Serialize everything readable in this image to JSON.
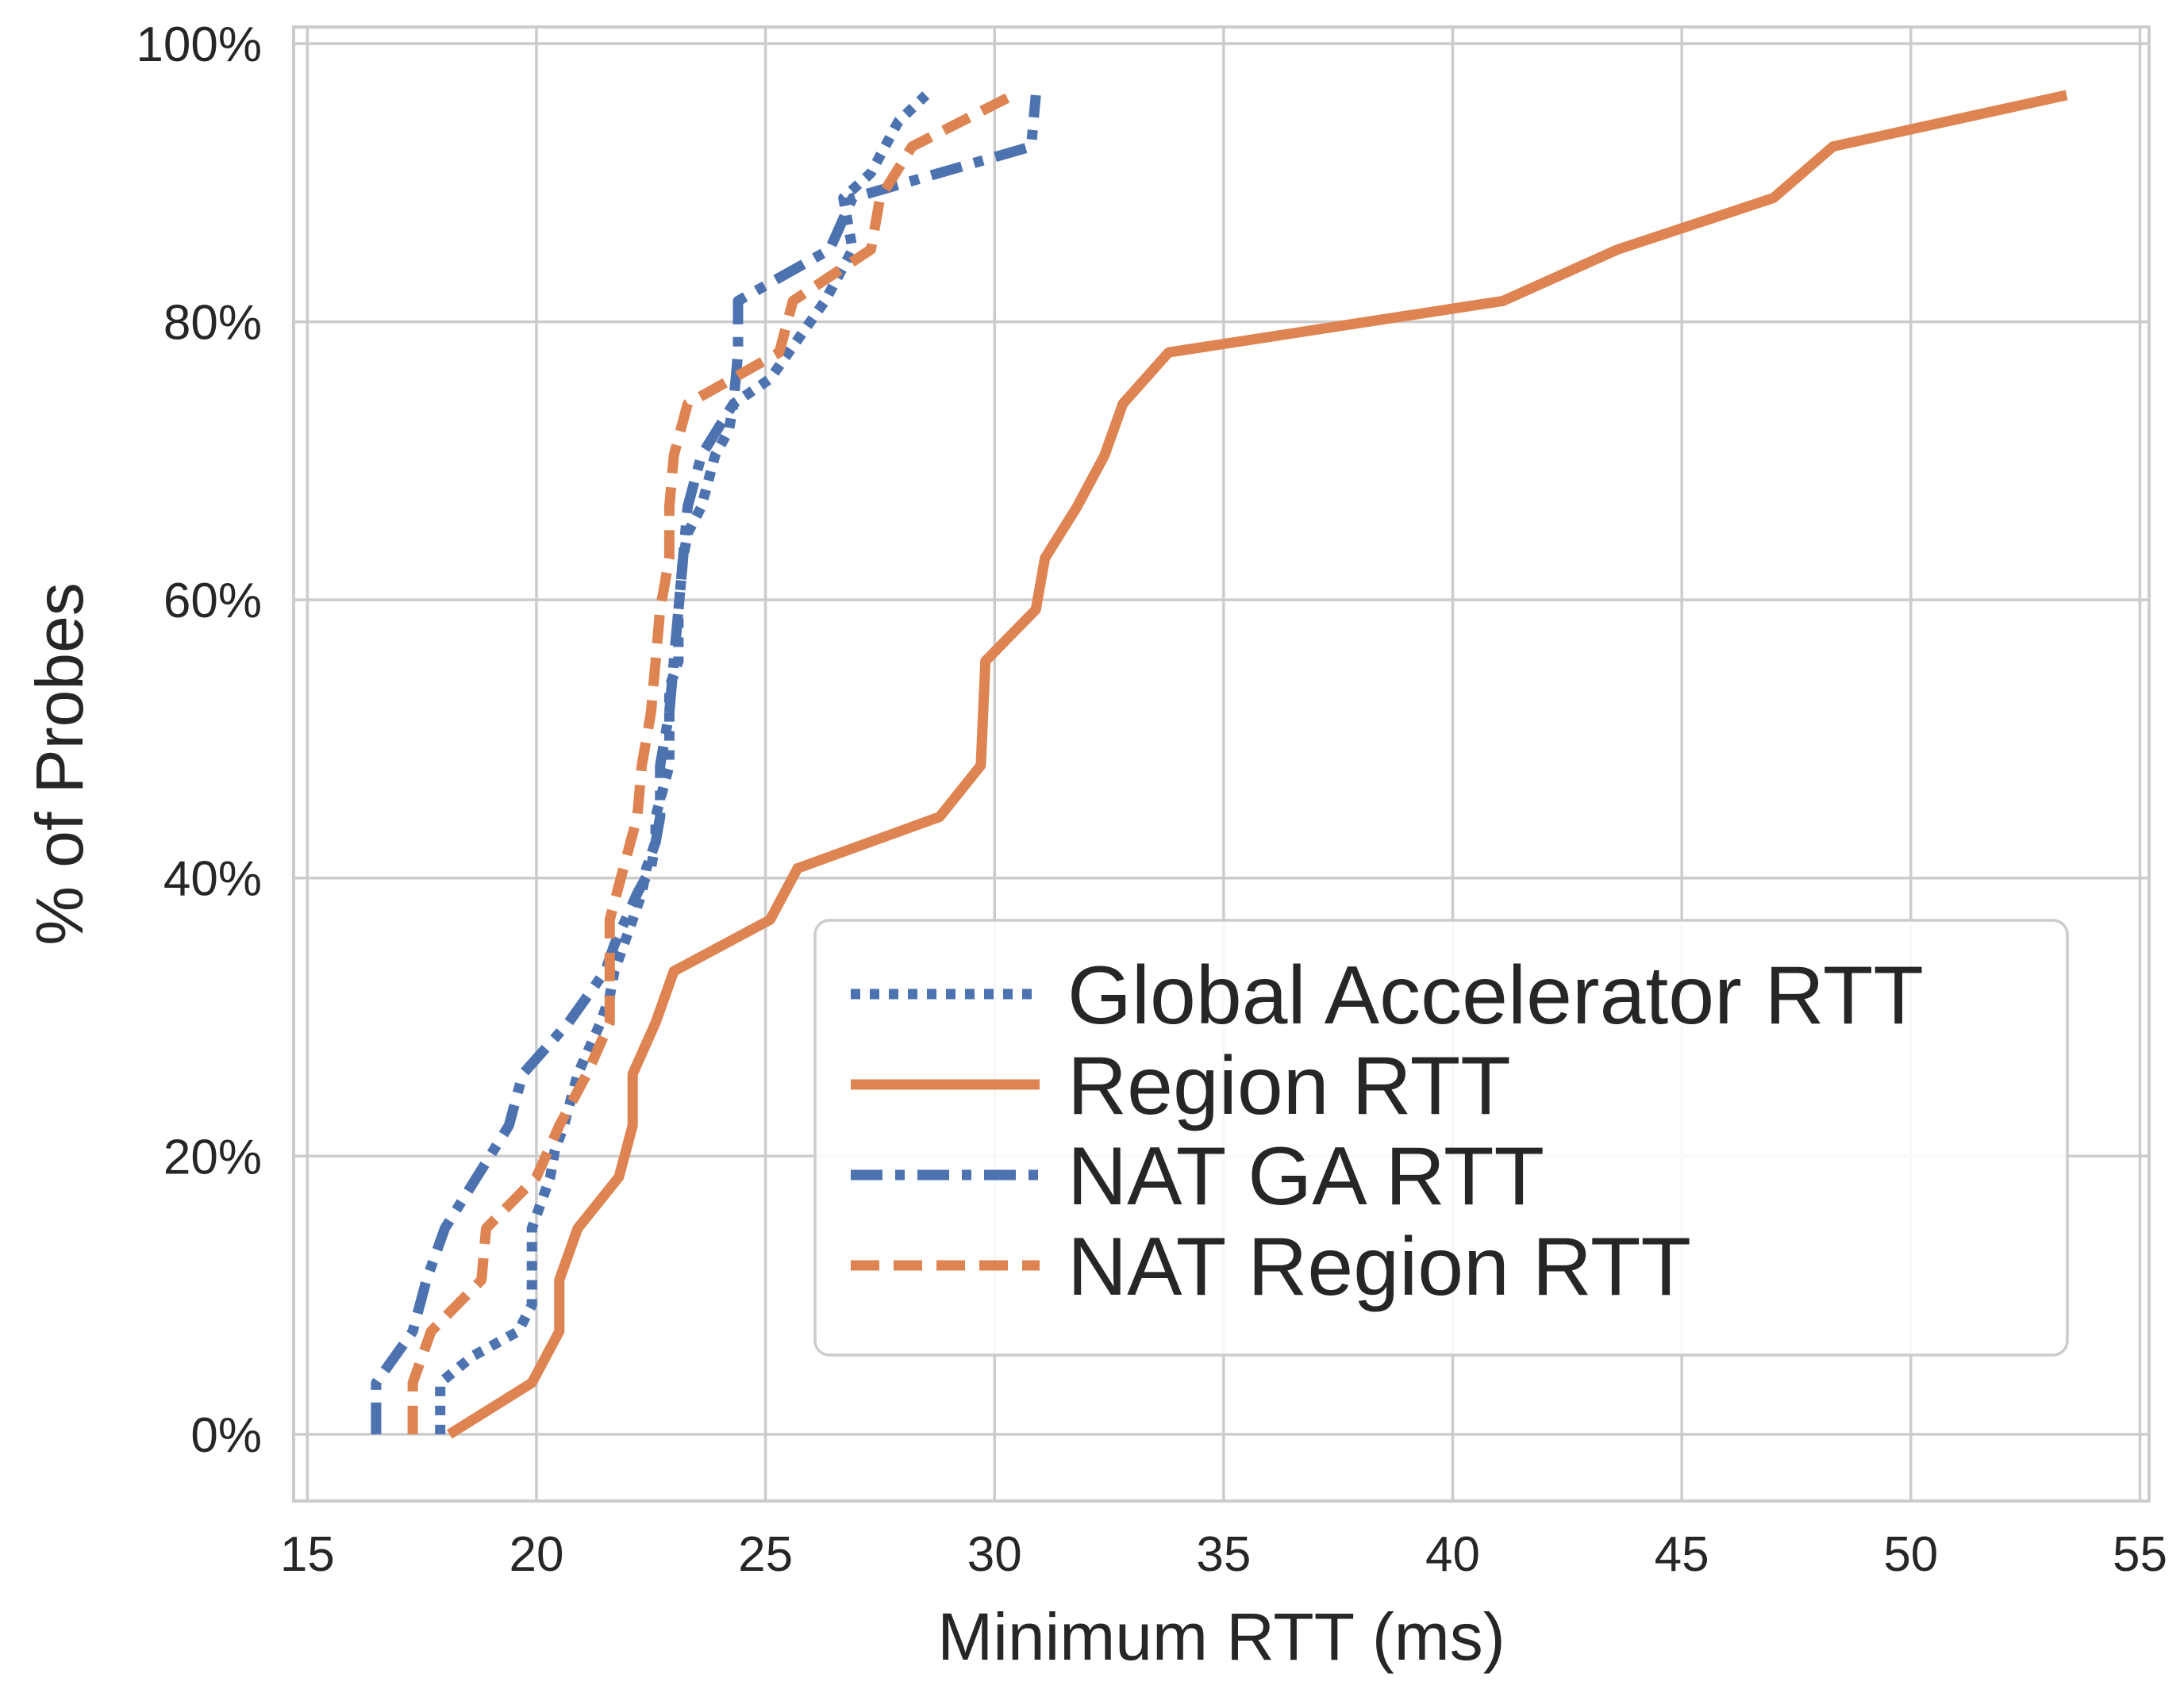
{
  "chart_data": {
    "type": "line",
    "title": "",
    "xlabel": "Minimum RTT (ms)",
    "ylabel": "% of Probes",
    "xlim": [
      14.7,
      55.2
    ],
    "ylim": [
      -0.048,
      1.012
    ],
    "xticks": [
      15,
      20,
      25,
      30,
      35,
      40,
      45,
      50,
      55
    ],
    "xtick_labels": [
      "15",
      "20",
      "25",
      "30",
      "35",
      "40",
      "45",
      "50",
      "55"
    ],
    "yticks": [
      0,
      0.2,
      0.4,
      0.6,
      0.8,
      1.0
    ],
    "ytick_labels": [
      "0%",
      "20%",
      "40%",
      "60%",
      "80%",
      "100%"
    ],
    "grid": true,
    "legend_position": "lower-right",
    "series": [
      {
        "name": "Global Accelerator RTT",
        "color": "#4c72b0",
        "dash": "dotted",
        "points": [
          [
            17.9,
            0.0
          ],
          [
            17.9,
            0.037
          ],
          [
            18.6,
            0.056
          ],
          [
            19.6,
            0.074
          ],
          [
            19.9,
            0.093
          ],
          [
            19.9,
            0.148
          ],
          [
            20.3,
            0.185
          ],
          [
            20.4,
            0.204
          ],
          [
            20.6,
            0.222
          ],
          [
            20.9,
            0.259
          ],
          [
            21.4,
            0.296
          ],
          [
            21.6,
            0.315
          ],
          [
            21.7,
            0.333
          ],
          [
            22.1,
            0.37
          ],
          [
            22.3,
            0.389
          ],
          [
            22.4,
            0.407
          ],
          [
            22.6,
            0.426
          ],
          [
            22.6,
            0.444
          ],
          [
            22.9,
            0.481
          ],
          [
            22.9,
            0.537
          ],
          [
            23.1,
            0.556
          ],
          [
            23.1,
            0.593
          ],
          [
            23.2,
            0.63
          ],
          [
            23.3,
            0.648
          ],
          [
            23.6,
            0.667
          ],
          [
            23.9,
            0.704
          ],
          [
            24.2,
            0.722
          ],
          [
            24.3,
            0.741
          ],
          [
            25.1,
            0.759
          ],
          [
            26.3,
            0.815
          ],
          [
            26.9,
            0.852
          ],
          [
            26.7,
            0.889
          ],
          [
            27.3,
            0.907
          ],
          [
            27.9,
            0.944
          ],
          [
            28.5,
            0.963
          ]
        ]
      },
      {
        "name": "Region RTT",
        "color": "#dd8452",
        "dash": "solid",
        "points": [
          [
            18.1,
            0.0
          ],
          [
            19.9,
            0.037
          ],
          [
            20.5,
            0.074
          ],
          [
            20.5,
            0.111
          ],
          [
            20.9,
            0.148
          ],
          [
            21.8,
            0.185
          ],
          [
            22.1,
            0.222
          ],
          [
            22.1,
            0.259
          ],
          [
            22.6,
            0.296
          ],
          [
            23.0,
            0.333
          ],
          [
            25.1,
            0.37
          ],
          [
            25.7,
            0.407
          ],
          [
            28.8,
            0.444
          ],
          [
            29.7,
            0.481
          ],
          [
            29.8,
            0.556
          ],
          [
            30.9,
            0.593
          ],
          [
            31.1,
            0.63
          ],
          [
            31.8,
            0.667
          ],
          [
            32.4,
            0.704
          ],
          [
            32.8,
            0.741
          ],
          [
            33.8,
            0.778
          ],
          [
            41.1,
            0.815
          ],
          [
            43.6,
            0.852
          ],
          [
            47.0,
            0.889
          ],
          [
            48.3,
            0.926
          ],
          [
            53.4,
            0.963
          ]
        ]
      },
      {
        "name": "NAT GA RTT",
        "color": "#4c72b0",
        "dash": "dashdot",
        "points": [
          [
            16.5,
            0.0
          ],
          [
            16.5,
            0.037
          ],
          [
            17.3,
            0.074
          ],
          [
            17.6,
            0.111
          ],
          [
            18.0,
            0.148
          ],
          [
            18.7,
            0.185
          ],
          [
            19.4,
            0.222
          ],
          [
            19.7,
            0.259
          ],
          [
            20.7,
            0.296
          ],
          [
            21.5,
            0.333
          ],
          [
            21.7,
            0.352
          ],
          [
            22.2,
            0.389
          ],
          [
            22.5,
            0.407
          ],
          [
            22.7,
            0.444
          ],
          [
            22.7,
            0.481
          ],
          [
            22.9,
            0.519
          ],
          [
            23.0,
            0.556
          ],
          [
            23.1,
            0.593
          ],
          [
            23.2,
            0.63
          ],
          [
            23.3,
            0.667
          ],
          [
            23.6,
            0.704
          ],
          [
            24.3,
            0.741
          ],
          [
            24.4,
            0.778
          ],
          [
            24.4,
            0.815
          ],
          [
            26.4,
            0.852
          ],
          [
            26.9,
            0.889
          ],
          [
            30.8,
            0.926
          ],
          [
            30.9,
            0.963
          ]
        ]
      },
      {
        "name": "NAT Region RTT",
        "color": "#dd8452",
        "dash": "dashed",
        "points": [
          [
            17.3,
            0.0
          ],
          [
            17.3,
            0.037
          ],
          [
            17.7,
            0.074
          ],
          [
            18.8,
            0.111
          ],
          [
            18.9,
            0.148
          ],
          [
            20.0,
            0.185
          ],
          [
            20.5,
            0.222
          ],
          [
            21.1,
            0.259
          ],
          [
            21.6,
            0.296
          ],
          [
            21.6,
            0.37
          ],
          [
            21.9,
            0.407
          ],
          [
            22.2,
            0.444
          ],
          [
            22.3,
            0.481
          ],
          [
            22.5,
            0.519
          ],
          [
            22.6,
            0.556
          ],
          [
            22.7,
            0.593
          ],
          [
            22.9,
            0.63
          ],
          [
            22.9,
            0.667
          ],
          [
            23.0,
            0.704
          ],
          [
            23.3,
            0.741
          ],
          [
            25.3,
            0.778
          ],
          [
            25.6,
            0.815
          ],
          [
            27.3,
            0.852
          ],
          [
            27.5,
            0.889
          ],
          [
            28.2,
            0.926
          ],
          [
            30.4,
            0.963
          ]
        ]
      }
    ]
  }
}
